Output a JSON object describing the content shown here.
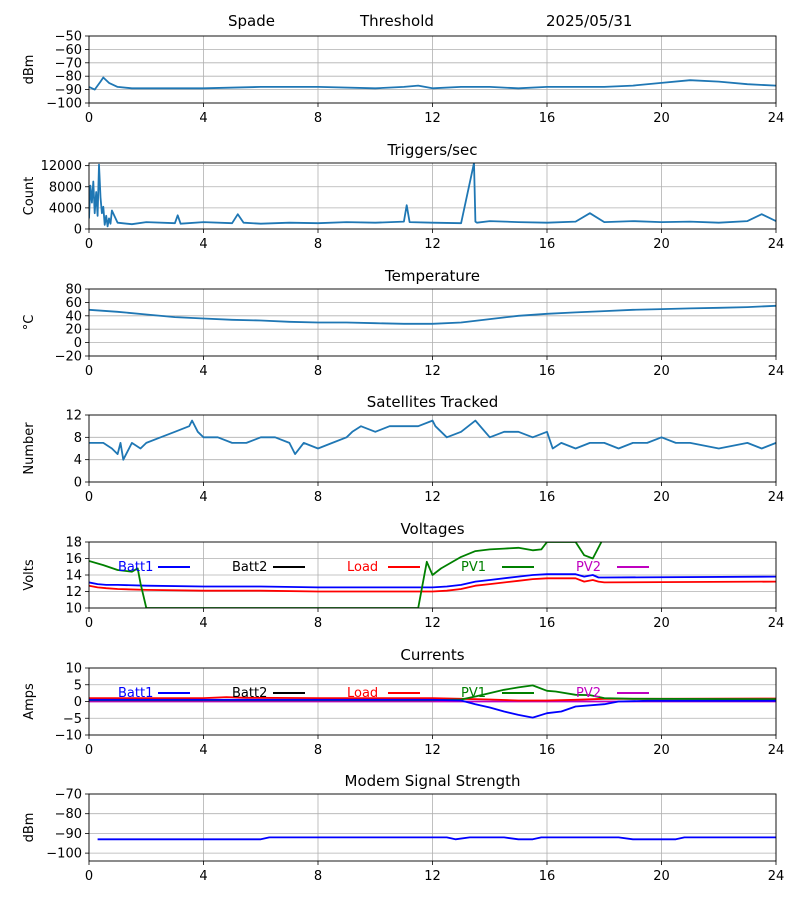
{
  "header": {
    "station": "Spade",
    "mode": "Threshold",
    "date": "2025/05/31"
  },
  "colors": {
    "default_line": "#1f77b4",
    "grid": "#b0b0b0",
    "Batt1": "#0000ff",
    "Batt2": "#000000",
    "Load": "#ff0000",
    "PV1": "#008000",
    "PV2": "#bf00bf"
  },
  "chart_data": [
    {
      "id": "threshold",
      "type": "line",
      "title": "",
      "ylabel": "dBm",
      "xlim": [
        0,
        24
      ],
      "ylim": [
        -100,
        -50
      ],
      "xticks": [
        "0",
        "4",
        "8",
        "12",
        "16",
        "20",
        "24"
      ],
      "yticks": [
        "-100",
        "-90",
        "-80",
        "-70",
        "-60",
        "-50"
      ],
      "series": [
        {
          "color": "#1f77b4",
          "x": [
            0,
            0.2,
            0.4,
            0.5,
            0.7,
            1,
            1.5,
            2,
            4,
            6,
            8,
            10,
            11,
            11.5,
            12,
            13,
            14,
            15,
            16,
            17,
            18,
            19,
            20,
            21,
            22,
            23,
            24
          ],
          "y": [
            -88,
            -90,
            -84,
            -81,
            -85,
            -88,
            -89,
            -89,
            -89,
            -88,
            -88,
            -89,
            -88,
            -87,
            -89,
            -88,
            -88,
            -89,
            -88,
            -88,
            -88,
            -87,
            -85,
            -83,
            -84,
            -86,
            -87
          ]
        }
      ]
    },
    {
      "id": "triggers",
      "type": "line",
      "title": "Triggers/sec",
      "ylabel": "Count",
      "xlim": [
        0,
        24
      ],
      "ylim": [
        0,
        12500
      ],
      "xticks": [
        "0",
        "4",
        "8",
        "12",
        "16",
        "20",
        "24"
      ],
      "yticks": [
        "0",
        "4000",
        "8000",
        "12000"
      ],
      "series": [
        {
          "color": "#1f77b4",
          "x": [
            0,
            0.05,
            0.1,
            0.15,
            0.2,
            0.25,
            0.3,
            0.35,
            0.4,
            0.45,
            0.5,
            0.55,
            0.6,
            0.65,
            0.7,
            0.75,
            0.8,
            1,
            1.5,
            2,
            3,
            3.1,
            3.2,
            4,
            5,
            5.2,
            5.4,
            6,
            7,
            8,
            9,
            10,
            11,
            11.1,
            11.2,
            12,
            13,
            13.45,
            13.5,
            13.55,
            14,
            15,
            16,
            17,
            17.5,
            18,
            19,
            20,
            21,
            22,
            23,
            23.5,
            24
          ],
          "y": [
            2000,
            8200,
            5000,
            9000,
            3000,
            7000,
            2500,
            12200,
            6000,
            3000,
            4200,
            800,
            2500,
            500,
            2000,
            1000,
            3500,
            1200,
            900,
            1300,
            1100,
            2600,
            1000,
            1300,
            1100,
            2800,
            1200,
            1000,
            1200,
            1100,
            1300,
            1200,
            1400,
            4500,
            1300,
            1200,
            1100,
            12500,
            1400,
            1200,
            1500,
            1300,
            1200,
            1400,
            3000,
            1300,
            1500,
            1300,
            1400,
            1200,
            1500,
            2800,
            1500
          ]
        }
      ]
    },
    {
      "id": "temperature",
      "type": "line",
      "title": "Temperature",
      "ylabel": "°C",
      "xlim": [
        0,
        24
      ],
      "ylim": [
        -20,
        80
      ],
      "xticks": [
        "0",
        "4",
        "8",
        "12",
        "16",
        "20",
        "24"
      ],
      "yticks": [
        "-20",
        "0",
        "20",
        "40",
        "60",
        "80"
      ],
      "series": [
        {
          "color": "#1f77b4",
          "x": [
            0,
            1,
            2,
            3,
            4,
            5,
            6,
            7,
            8,
            9,
            10,
            11,
            12,
            13,
            14,
            15,
            16,
            17,
            18,
            19,
            20,
            21,
            22,
            23,
            24
          ],
          "y": [
            49,
            46,
            42,
            38,
            36,
            34,
            33,
            31,
            30,
            30,
            29,
            28,
            28,
            30,
            35,
            40,
            43,
            45,
            47,
            49,
            50,
            51,
            52,
            53,
            55
          ]
        }
      ]
    },
    {
      "id": "satellites",
      "type": "line",
      "title": "Satellites Tracked",
      "ylabel": "Number",
      "xlim": [
        0,
        24
      ],
      "ylim": [
        0,
        12
      ],
      "xticks": [
        "0",
        "4",
        "8",
        "12",
        "16",
        "20",
        "24"
      ],
      "yticks": [
        "0",
        "4",
        "8",
        "12"
      ],
      "series": [
        {
          "color": "#1f77b4",
          "x": [
            0,
            0.5,
            0.8,
            1,
            1.1,
            1.2,
            1.5,
            1.8,
            2,
            2.5,
            3,
            3.5,
            3.6,
            3.8,
            4,
            4.5,
            5,
            5.5,
            6,
            6.5,
            7,
            7.2,
            7.5,
            8,
            8.5,
            9,
            9.2,
            9.5,
            10,
            10.5,
            11,
            11.5,
            12,
            12.1,
            12.5,
            13,
            13.5,
            14,
            14.5,
            15,
            15.5,
            16,
            16.2,
            16.5,
            17,
            17.5,
            18,
            18.5,
            19,
            19.5,
            20,
            20.5,
            21,
            22,
            23,
            23.5,
            24
          ],
          "y": [
            7,
            7,
            6,
            5,
            7,
            4,
            7,
            6,
            7,
            8,
            9,
            10,
            11,
            9,
            8,
            8,
            7,
            7,
            8,
            8,
            7,
            5,
            7,
            6,
            7,
            8,
            9,
            10,
            9,
            10,
            10,
            10,
            11,
            10,
            8,
            9,
            11,
            8,
            9,
            9,
            8,
            9,
            6,
            7,
            6,
            7,
            7,
            6,
            7,
            7,
            8,
            7,
            7,
            6,
            7,
            6,
            7
          ]
        }
      ]
    },
    {
      "id": "voltages",
      "type": "line",
      "title": "Voltages",
      "ylabel": "Volts",
      "xlim": [
        0,
        24
      ],
      "ylim": [
        10,
        18
      ],
      "xticks": [
        "0",
        "4",
        "8",
        "12",
        "16",
        "20",
        "24"
      ],
      "yticks": [
        "10",
        "12",
        "14",
        "16",
        "18"
      ],
      "legend": [
        "Batt1",
        "Batt2",
        "Load",
        "PV1",
        "PV2"
      ],
      "legend_loc": "upper",
      "series": [
        {
          "name": "Batt1",
          "color": "#0000ff",
          "x": [
            0,
            0.3,
            0.6,
            1,
            2,
            4,
            6,
            8,
            10,
            12,
            12.5,
            13,
            13.5,
            14,
            15,
            15.5,
            16,
            17,
            17.3,
            17.6,
            17.8,
            18,
            24
          ],
          "y": [
            13.1,
            12.9,
            12.8,
            12.8,
            12.7,
            12.6,
            12.6,
            12.5,
            12.5,
            12.5,
            12.6,
            12.8,
            13.2,
            13.4,
            13.8,
            14.0,
            14.1,
            14.1,
            13.8,
            14.0,
            13.7,
            13.7,
            13.8
          ]
        },
        {
          "name": "Load",
          "color": "#ff0000",
          "x": [
            0,
            0.3,
            0.6,
            1,
            2,
            4,
            6,
            8,
            10,
            12,
            12.5,
            13,
            13.5,
            14,
            15,
            15.5,
            16,
            17,
            17.3,
            17.6,
            17.8,
            18,
            24
          ],
          "y": [
            12.7,
            12.5,
            12.4,
            12.3,
            12.2,
            12.1,
            12.1,
            12.0,
            12.0,
            12.0,
            12.1,
            12.3,
            12.7,
            12.9,
            13.3,
            13.5,
            13.6,
            13.6,
            13.2,
            13.4,
            13.2,
            13.1,
            13.2
          ]
        },
        {
          "name": "PV1",
          "color": "#008000",
          "x": [
            0,
            0.5,
            1,
            1.5,
            1.7,
            1.8,
            2.0,
            11.5,
            11.8,
            12.0,
            12.3,
            13,
            13.5,
            14,
            14.5,
            15,
            15.5,
            15.8,
            16.0,
            17.0,
            17.3,
            17.6,
            17.9
          ],
          "y": [
            15.7,
            15.2,
            14.6,
            14.4,
            14.8,
            13.0,
            10.0,
            10.0,
            15.6,
            14.0,
            14.8,
            16.2,
            16.9,
            17.1,
            17.2,
            17.3,
            17.0,
            17.1,
            18.0,
            18.0,
            16.4,
            16.0,
            18.0
          ]
        }
      ]
    },
    {
      "id": "currents",
      "type": "line",
      "title": "Currents",
      "ylabel": "Amps",
      "xlim": [
        0,
        24
      ],
      "ylim": [
        -10,
        10
      ],
      "xticks": [
        "0",
        "4",
        "8",
        "12",
        "16",
        "20",
        "24"
      ],
      "yticks": [
        "-10",
        "-5",
        "0",
        "5",
        "10"
      ],
      "legend": [
        "Batt1",
        "Batt2",
        "Load",
        "PV1",
        "PV2"
      ],
      "legend_loc": "upper",
      "series": [
        {
          "name": "PV2",
          "color": "#bf00bf",
          "x": [
            0,
            24
          ],
          "y": [
            0.0,
            0.0
          ]
        },
        {
          "name": "Load",
          "color": "#ff0000",
          "x": [
            0,
            4,
            4.8,
            5.5,
            8,
            12,
            13,
            14,
            15,
            16,
            17,
            18,
            20,
            24
          ],
          "y": [
            1.0,
            1.0,
            1.3,
            1.1,
            1.0,
            1.0,
            0.8,
            0.6,
            0.3,
            0.3,
            0.5,
            0.8,
            0.8,
            0.9
          ]
        },
        {
          "name": "PV1",
          "color": "#008000",
          "x": [
            0,
            12,
            13,
            13.5,
            14,
            14.5,
            15,
            15.5,
            16,
            16.3,
            17,
            17.5,
            18,
            19,
            24
          ],
          "y": [
            0.4,
            0.4,
            0.6,
            1.5,
            2.5,
            3.5,
            4.2,
            4.8,
            3.2,
            3.0,
            2.0,
            1.9,
            1.0,
            0.8,
            0.7
          ]
        },
        {
          "name": "Batt1",
          "color": "#0000ff",
          "x": [
            0,
            12,
            13,
            13.5,
            14,
            14.5,
            15,
            15.5,
            16,
            16.5,
            17,
            18,
            18.5,
            19.5,
            20,
            24
          ],
          "y": [
            0.5,
            0.5,
            0.3,
            -0.8,
            -1.8,
            -3.0,
            -4.0,
            -4.8,
            -3.5,
            -3.0,
            -1.5,
            -0.8,
            0.0,
            0.2,
            0.2,
            0.2
          ]
        }
      ]
    },
    {
      "id": "modem",
      "type": "line",
      "title": "Modem Signal Strength",
      "ylabel": "dBm",
      "xlim": [
        0,
        24
      ],
      "ylim": [
        -104,
        -70
      ],
      "xticks": [
        "0",
        "4",
        "8",
        "12",
        "16",
        "20",
        "24"
      ],
      "yticks": [
        "-100",
        "-90",
        "-80",
        "-70"
      ],
      "series": [
        {
          "color": "#0000ff",
          "x": [
            0.3,
            6,
            6.3,
            12.5,
            12.8,
            13.3,
            14.5,
            15,
            15.5,
            15.8,
            18.5,
            19,
            20.5,
            20.8,
            24
          ],
          "y": [
            -93,
            -93,
            -92,
            -92,
            -93,
            -92,
            -92,
            -93,
            -93,
            -92,
            -92,
            -93,
            -93,
            -92,
            -92
          ]
        }
      ]
    }
  ]
}
